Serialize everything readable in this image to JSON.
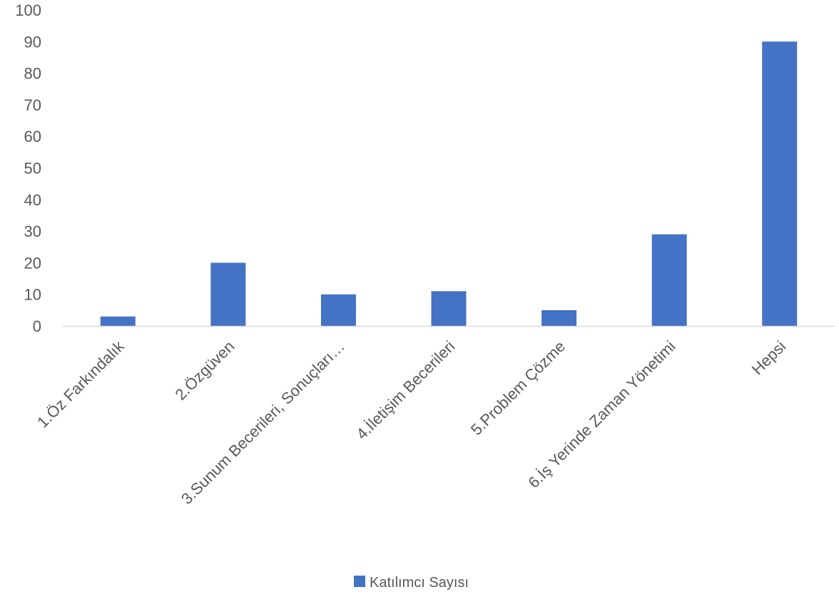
{
  "chart_data": {
    "type": "bar",
    "categories": [
      "1.Öz Farkındalık",
      "2.Özgüven",
      "3.Sunum Becerileri, Sonuçları…",
      "4.İletişim Becerileri",
      "5.Problem Çözme",
      "6.İş Yerinde Zaman Yönetimi",
      "Hepsi"
    ],
    "series": [
      {
        "name": "Katılımcı Sayısı",
        "values": [
          3,
          20,
          10,
          11,
          5,
          29,
          90
        ]
      }
    ],
    "ylim": [
      0,
      100
    ],
    "yticks": [
      0,
      10,
      20,
      30,
      40,
      50,
      60,
      70,
      80,
      90,
      100
    ],
    "grid": false,
    "legend_position": "bottom",
    "title": "",
    "xlabel": "",
    "ylabel": ""
  },
  "colors": {
    "bar": "#4472C4",
    "axis": "#D9D9D9",
    "text": "#595959"
  }
}
